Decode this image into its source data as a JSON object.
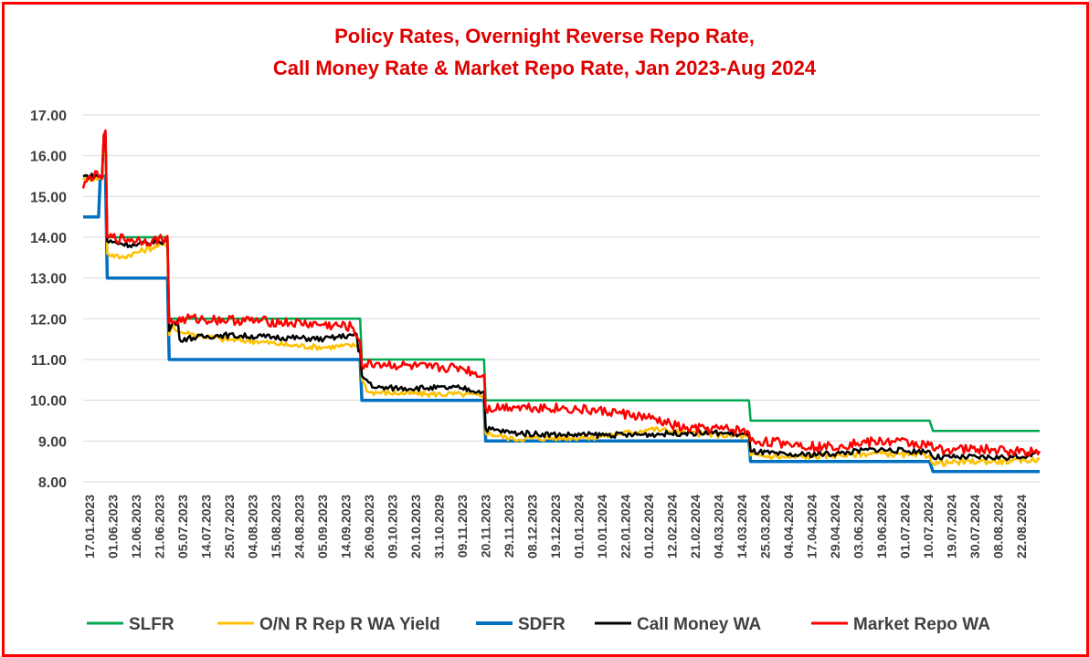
{
  "chart_data": {
    "type": "line",
    "title_lines": [
      "Policy Rates, Overnight Reverse Repo Rate,",
      "Call Money Rate & Market Repo Rate, Jan 2023-Aug 2024"
    ],
    "xlabel": "",
    "ylabel": "",
    "ylim": [
      8.0,
      17.0
    ],
    "yticks": [
      "17.00",
      "16.00",
      "15.00",
      "14.00",
      "13.00",
      "12.00",
      "11.00",
      "10.00",
      "9.00",
      "8.00"
    ],
    "x_tick_labels": [
      "17.01.2023",
      "01.06.2023",
      "12.06.2023",
      "21.06.2023",
      "05.07.2023",
      "14.07.2023",
      "25.07.2023",
      "04.08.2023",
      "15.08.2023",
      "24.08.2023",
      "05.09.2023",
      "14.09.2023",
      "26.09.2023",
      "09.10.2023",
      "20.10.2023",
      "31.10.2029",
      "09.11.2023",
      "20.11.2023",
      "29.11.2023",
      "08.12.2023",
      "19.12.2023",
      "01.01.2024",
      "10.01.2024",
      "22.01.2024",
      "01.02.2024",
      "12.02.2024",
      "21.02.2024",
      "04.03.2024",
      "14.03.2024",
      "25.03.2024",
      "04.04.2024",
      "17.04.2024",
      "29.04.2024",
      "03.06.2024",
      "19.06.2024",
      "01.07.2024",
      "10.07.2024",
      "19.07.2024",
      "30.07.2024",
      "08.08.2024",
      "22.08.2024"
    ],
    "grid": true,
    "legend_position": "bottom",
    "n_points": 420,
    "series": [
      {
        "name": "SLFR",
        "color": "#00a650",
        "steps": [
          [
            0,
            15.5
          ],
          [
            5,
            15.5
          ],
          [
            6,
            16.5
          ],
          [
            7,
            14.0
          ],
          [
            24,
            14.0
          ],
          [
            25,
            12.0
          ],
          [
            80,
            12.0
          ],
          [
            81,
            11.0
          ],
          [
            116,
            11.0
          ],
          [
            117,
            10.0
          ],
          [
            193,
            10.0
          ],
          [
            194,
            9.5
          ],
          [
            246,
            9.5
          ],
          [
            247,
            9.25
          ],
          [
            278,
            9.25
          ]
        ]
      },
      {
        "name": "O/N R Rep R WA Yield",
        "color": "#ffc000",
        "steps": [
          [
            0,
            15.45
          ],
          [
            5,
            15.45
          ],
          [
            6,
            16.3
          ],
          [
            7,
            13.6
          ],
          [
            11,
            13.5
          ],
          [
            22,
            13.8
          ],
          [
            25,
            11.6
          ],
          [
            26,
            11.9
          ],
          [
            27,
            11.7
          ],
          [
            30,
            11.65
          ],
          [
            40,
            11.5
          ],
          [
            50,
            11.45
          ],
          [
            60,
            11.35
          ],
          [
            70,
            11.3
          ],
          [
            80,
            11.35
          ],
          [
            81,
            10.5
          ],
          [
            83,
            10.2
          ],
          [
            100,
            10.15
          ],
          [
            110,
            10.15
          ],
          [
            116,
            10.1
          ],
          [
            117,
            9.2
          ],
          [
            125,
            9.05
          ],
          [
            150,
            9.1
          ],
          [
            165,
            9.3
          ],
          [
            175,
            9.2
          ],
          [
            185,
            9.15
          ],
          [
            193,
            9.1
          ],
          [
            194,
            8.65
          ],
          [
            205,
            8.6
          ],
          [
            220,
            8.65
          ],
          [
            230,
            8.7
          ],
          [
            240,
            8.65
          ],
          [
            246,
            8.65
          ],
          [
            247,
            8.45
          ],
          [
            260,
            8.5
          ],
          [
            270,
            8.5
          ],
          [
            278,
            8.55
          ]
        ]
      },
      {
        "name": "SDFR",
        "color": "#0070c0",
        "steps": [
          [
            0,
            14.5
          ],
          [
            4,
            14.5
          ],
          [
            5,
            15.5
          ],
          [
            6,
            15.5
          ],
          [
            7,
            13.0
          ],
          [
            24,
            13.0
          ],
          [
            25,
            11.0
          ],
          [
            80,
            11.0
          ],
          [
            81,
            10.0
          ],
          [
            116,
            10.0
          ],
          [
            117,
            9.0
          ],
          [
            193,
            9.0
          ],
          [
            194,
            8.5
          ],
          [
            246,
            8.5
          ],
          [
            247,
            8.25
          ],
          [
            278,
            8.25
          ]
        ]
      },
      {
        "name": "Call Money WA",
        "color": "#000000",
        "steps": [
          [
            0,
            15.5
          ],
          [
            5,
            15.5
          ],
          [
            6,
            16.5
          ],
          [
            7,
            13.9
          ],
          [
            15,
            13.8
          ],
          [
            22,
            13.9
          ],
          [
            25,
            11.7
          ],
          [
            26,
            11.9
          ],
          [
            28,
            11.5
          ],
          [
            40,
            11.6
          ],
          [
            55,
            11.55
          ],
          [
            70,
            11.5
          ],
          [
            78,
            11.6
          ],
          [
            80,
            11.2
          ],
          [
            81,
            10.6
          ],
          [
            85,
            10.3
          ],
          [
            100,
            10.3
          ],
          [
            110,
            10.3
          ],
          [
            116,
            10.2
          ],
          [
            117,
            9.3
          ],
          [
            125,
            9.2
          ],
          [
            140,
            9.15
          ],
          [
            160,
            9.15
          ],
          [
            175,
            9.2
          ],
          [
            185,
            9.2
          ],
          [
            193,
            9.15
          ],
          [
            194,
            8.75
          ],
          [
            205,
            8.65
          ],
          [
            220,
            8.7
          ],
          [
            230,
            8.8
          ],
          [
            240,
            8.75
          ],
          [
            246,
            8.75
          ],
          [
            247,
            8.6
          ],
          [
            260,
            8.6
          ],
          [
            270,
            8.6
          ],
          [
            278,
            8.7
          ]
        ]
      },
      {
        "name": "Market Repo WA",
        "color": "#ff0000",
        "steps": [
          [
            0,
            15.2
          ],
          [
            2,
            15.5
          ],
          [
            5,
            15.5
          ],
          [
            6,
            16.5
          ],
          [
            7,
            14.0
          ],
          [
            20,
            13.9
          ],
          [
            24,
            14.0
          ],
          [
            25,
            11.9
          ],
          [
            30,
            12.0
          ],
          [
            50,
            11.95
          ],
          [
            70,
            11.85
          ],
          [
            78,
            11.8
          ],
          [
            80,
            11.5
          ],
          [
            81,
            10.85
          ],
          [
            85,
            10.9
          ],
          [
            100,
            10.8
          ],
          [
            110,
            10.8
          ],
          [
            116,
            10.6
          ],
          [
            117,
            9.8
          ],
          [
            125,
            9.85
          ],
          [
            140,
            9.8
          ],
          [
            155,
            9.7
          ],
          [
            165,
            9.55
          ],
          [
            175,
            9.3
          ],
          [
            185,
            9.3
          ],
          [
            193,
            9.25
          ],
          [
            194,
            9.0
          ],
          [
            205,
            8.95
          ],
          [
            215,
            8.85
          ],
          [
            225,
            8.95
          ],
          [
            235,
            9.0
          ],
          [
            246,
            8.9
          ],
          [
            247,
            8.8
          ],
          [
            260,
            8.8
          ],
          [
            270,
            8.75
          ],
          [
            278,
            8.75
          ]
        ]
      }
    ]
  }
}
